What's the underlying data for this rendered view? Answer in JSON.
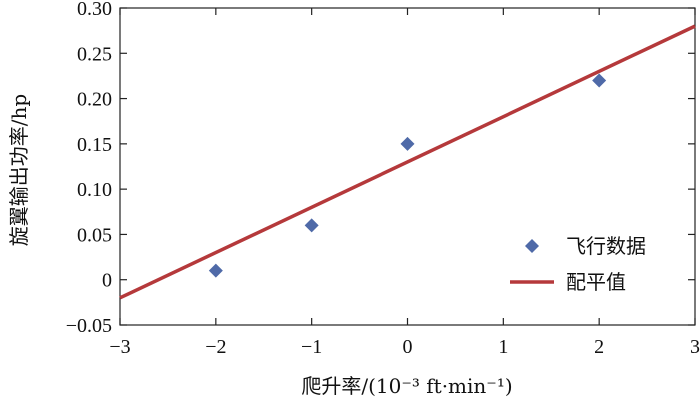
{
  "chart_data": {
    "type": "scatter",
    "xlim": [
      -3,
      3
    ],
    "ylim": [
      -0.05,
      0.3
    ],
    "x_ticks": [
      -3,
      -2,
      -1,
      0,
      1,
      2,
      3
    ],
    "x_tick_labels": [
      "−3",
      "−2",
      "−1",
      "0",
      "1",
      "2",
      "3"
    ],
    "y_ticks": [
      -0.05,
      0,
      0.05,
      0.1,
      0.15,
      0.2,
      0.25,
      0.3
    ],
    "y_tick_labels": [
      "−0.05",
      "0",
      "0.05",
      "0.10",
      "0.15",
      "0.20",
      "0.25",
      "0.30"
    ],
    "xlabel": "爬升率/(10⁻³ ft·min⁻¹)",
    "ylabel": "旋翼输出功率/hp",
    "grid": false,
    "legend_position": "bottom-right",
    "series": [
      {
        "name": "飞行数据",
        "kind": "points",
        "marker": "diamond",
        "color": "#4f6aa8",
        "x": [
          -2,
          -1,
          0,
          2
        ],
        "y": [
          0.01,
          0.06,
          0.15,
          0.22
        ]
      },
      {
        "name": "配平值",
        "kind": "line",
        "color": "#b5393b",
        "x": [
          -3,
          3
        ],
        "y": [
          -0.02,
          0.28
        ]
      }
    ]
  }
}
